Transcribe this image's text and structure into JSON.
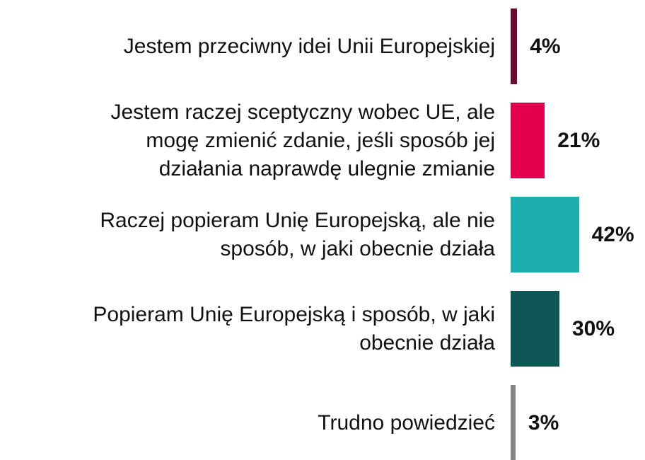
{
  "chart_data": {
    "type": "bar",
    "orientation": "horizontal",
    "categories": [
      "Jestem przeciwny idei Unii Europejskiej",
      "Jestem raczej sceptyczny wobec UE, ale\nmogę zmienić zdanie, jeśli sposób jej\ndziałania naprawdę ulegnie zmianie",
      "Raczej popieram Unię Europejską, ale nie\nsposób, w jaki obecnie działa",
      "Popieram Unię Europejską i sposób, w jaki\nobecnie działa",
      "Trudno powiedzieć"
    ],
    "values": [
      4,
      21,
      42,
      30,
      3
    ],
    "value_labels": [
      "4%",
      "21%",
      "42%",
      "30%",
      "3%"
    ],
    "colors": [
      "#6b0a30",
      "#e3004f",
      "#1cafad",
      "#0f5756",
      "#858585"
    ]
  }
}
